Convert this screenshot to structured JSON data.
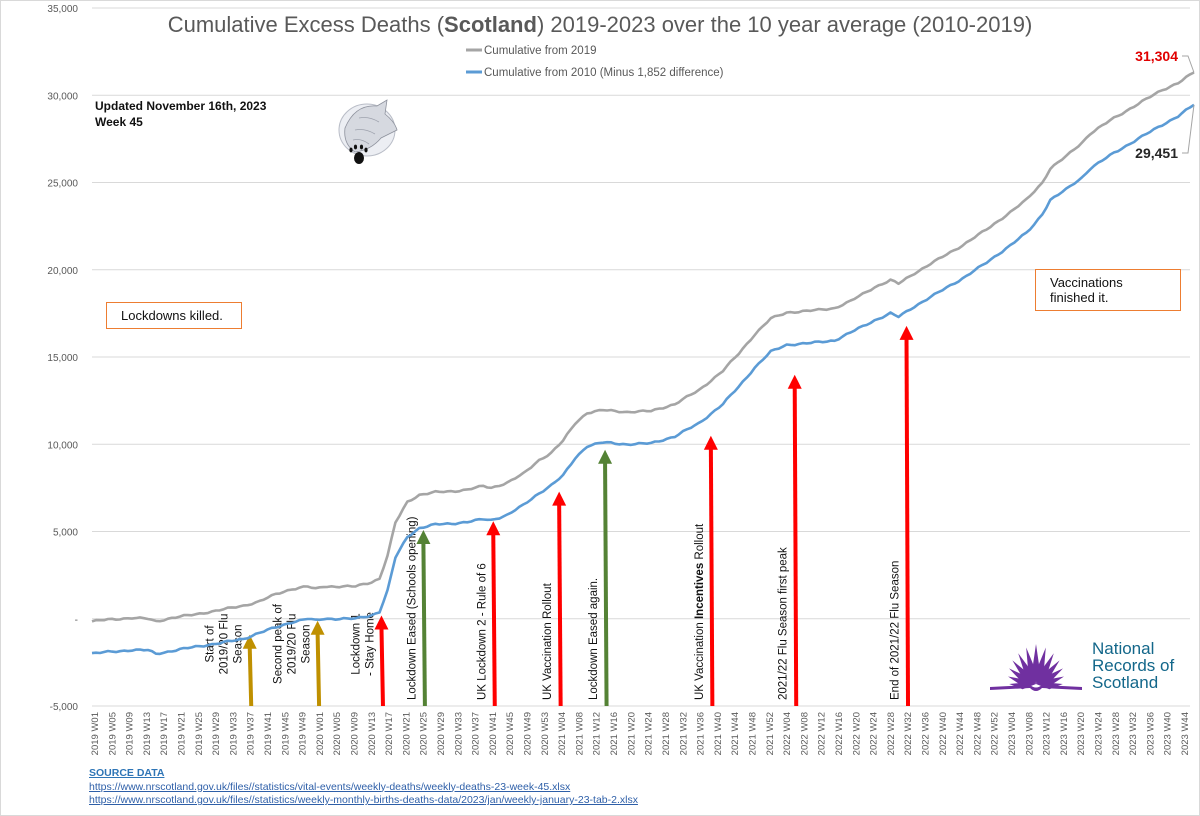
{
  "chart_data": {
    "type": "line",
    "title_parts": [
      "Cumulative Excess Deaths (",
      "Scotland",
      ") 2019-2023 over the 10 year average (2010-2019)"
    ],
    "xlabel": "",
    "ylabel": "",
    "ylim": [
      -5000,
      35000
    ],
    "yticks": [
      -5000,
      0,
      5000,
      10000,
      15000,
      20000,
      25000,
      30000,
      35000
    ],
    "ytick_labels": [
      "-5,000",
      "-",
      "5,000",
      "10,000",
      "15,000",
      "20,000",
      "25,000",
      "30,000",
      "35,000"
    ],
    "grid": true,
    "legend_position": "top-center",
    "x_start": "2019 W01",
    "x_end": "2023 W45",
    "x_count": 254,
    "x_tick_labels": [
      "2019 W01",
      "2019 W05",
      "2019 W09",
      "2019 W13",
      "2019 W17",
      "2019 W21",
      "2019 W25",
      "2019 W29",
      "2019 W33",
      "2019 W37",
      "2019 W41",
      "2019 W45",
      "2019 W49",
      "2020 W01",
      "2020 W05",
      "2020 W09",
      "2020 W13",
      "2020 W17",
      "2020 W21",
      "2020 W25",
      "2020 W29",
      "2020 W33",
      "2020 W37",
      "2020 W41",
      "2020 W45",
      "2020 W49",
      "2020 W53",
      "2021 W04",
      "2021 W08",
      "2021 W12",
      "2021 W16",
      "2021 W20",
      "2021 W24",
      "2021 W28",
      "2021 W32",
      "2021 W36",
      "2021 W40",
      "2021 W44",
      "2021 W48",
      "2021 W52",
      "2022 W04",
      "2022 W08",
      "2022 W12",
      "2022 W16",
      "2022 W20",
      "2022 W24",
      "2022 W28",
      "2022 W32",
      "2022 W36",
      "2022 W40",
      "2022 W44",
      "2022 W48",
      "2022 W52",
      "2023 W04",
      "2023 W08",
      "2023 W12",
      "2023 W16",
      "2023 W20",
      "2023 W24",
      "2023 W28",
      "2023 W32",
      "2023 W36",
      "2023 W40",
      "2023 W44"
    ],
    "series": [
      {
        "name": "Cumulative from 2019",
        "color": "#a5a5a5",
        "end_label": "31,304",
        "end_label_color": "#e00000",
        "keypoints": [
          [
            0,
            -150
          ],
          [
            4,
            -50
          ],
          [
            10,
            50
          ],
          [
            14,
            0
          ],
          [
            16,
            -150
          ],
          [
            20,
            50
          ],
          [
            26,
            250
          ],
          [
            32,
            500
          ],
          [
            38,
            750
          ],
          [
            42,
            1000
          ],
          [
            46,
            1400
          ],
          [
            50,
            1700
          ],
          [
            54,
            1850
          ],
          [
            56,
            1700
          ],
          [
            58,
            1850
          ],
          [
            66,
            1850
          ],
          [
            70,
            2100
          ],
          [
            72,
            2300
          ],
          [
            74,
            3600
          ],
          [
            76,
            5500
          ],
          [
            79,
            6700
          ],
          [
            82,
            7100
          ],
          [
            86,
            7250
          ],
          [
            90,
            7300
          ],
          [
            94,
            7400
          ],
          [
            98,
            7600
          ],
          [
            100,
            7500
          ],
          [
            104,
            7800
          ],
          [
            108,
            8300
          ],
          [
            112,
            9100
          ],
          [
            115,
            9500
          ],
          [
            118,
            10200
          ],
          [
            121,
            11200
          ],
          [
            124,
            11800
          ],
          [
            128,
            11950
          ],
          [
            134,
            11850
          ],
          [
            140,
            11900
          ],
          [
            146,
            12300
          ],
          [
            152,
            13100
          ],
          [
            158,
            14200
          ],
          [
            162,
            15200
          ],
          [
            166,
            16300
          ],
          [
            170,
            17200
          ],
          [
            174,
            17550
          ],
          [
            180,
            17650
          ],
          [
            186,
            17800
          ],
          [
            190,
            18200
          ],
          [
            196,
            19000
          ],
          [
            200,
            19400
          ],
          [
            202,
            19200
          ],
          [
            206,
            19800
          ],
          [
            212,
            20600
          ],
          [
            218,
            21400
          ],
          [
            224,
            22300
          ],
          [
            230,
            23300
          ],
          [
            234,
            24000
          ],
          [
            236,
            24500
          ],
          [
            238,
            25000
          ],
          [
            240,
            25800
          ],
          [
            244,
            26500
          ],
          [
            248,
            27300
          ],
          [
            250,
            27800
          ],
          [
            256,
            28700
          ],
          [
            262,
            29500
          ],
          [
            268,
            30300
          ],
          [
            272,
            30700
          ],
          [
            276,
            31304
          ]
        ]
      },
      {
        "name": "Cumulative from 2010 (Minus 1,852 difference)",
        "color": "#5b9bd5",
        "end_label": "29,451",
        "end_label_color": "#262626",
        "keypoints": [
          [
            0,
            -2000
          ],
          [
            4,
            -1900
          ],
          [
            10,
            -1800
          ],
          [
            14,
            -1800
          ],
          [
            16,
            -2000
          ],
          [
            20,
            -1850
          ],
          [
            26,
            -1600
          ],
          [
            32,
            -1400
          ],
          [
            38,
            -1150
          ],
          [
            42,
            -800
          ],
          [
            46,
            -500
          ],
          [
            50,
            -200
          ],
          [
            54,
            0
          ],
          [
            56,
            -100
          ],
          [
            58,
            0
          ],
          [
            66,
            0
          ],
          [
            70,
            200
          ],
          [
            72,
            400
          ],
          [
            74,
            1600
          ],
          [
            76,
            3500
          ],
          [
            79,
            4700
          ],
          [
            82,
            5200
          ],
          [
            86,
            5400
          ],
          [
            90,
            5450
          ],
          [
            94,
            5550
          ],
          [
            98,
            5700
          ],
          [
            100,
            5650
          ],
          [
            104,
            5950
          ],
          [
            108,
            6500
          ],
          [
            112,
            7200
          ],
          [
            115,
            7650
          ],
          [
            118,
            8200
          ],
          [
            121,
            9200
          ],
          [
            124,
            9900
          ],
          [
            128,
            10100
          ],
          [
            134,
            10000
          ],
          [
            140,
            10050
          ],
          [
            146,
            10450
          ],
          [
            152,
            11200
          ],
          [
            158,
            12300
          ],
          [
            162,
            13300
          ],
          [
            166,
            14400
          ],
          [
            170,
            15300
          ],
          [
            174,
            15700
          ],
          [
            180,
            15800
          ],
          [
            186,
            15950
          ],
          [
            190,
            16400
          ],
          [
            196,
            17100
          ],
          [
            200,
            17500
          ],
          [
            202,
            17300
          ],
          [
            206,
            17900
          ],
          [
            212,
            18700
          ],
          [
            218,
            19500
          ],
          [
            224,
            20400
          ],
          [
            230,
            21400
          ],
          [
            234,
            22100
          ],
          [
            236,
            22600
          ],
          [
            238,
            23200
          ],
          [
            240,
            24000
          ],
          [
            244,
            24600
          ],
          [
            248,
            25300
          ],
          [
            250,
            25800
          ],
          [
            256,
            26700
          ],
          [
            262,
            27500
          ],
          [
            268,
            28300
          ],
          [
            272,
            28800
          ],
          [
            276,
            29451
          ]
        ]
      }
    ],
    "annotations": [
      {
        "x_index": 39.5,
        "top_value": -800,
        "color": "#bf9000",
        "lines": [
          "Start of",
          "2019/20 Flu",
          "Season"
        ]
      },
      {
        "x_index": 56.5,
        "top_value": 0,
        "color": "#bf9000",
        "lines": [
          "Second peak of",
          "2019/20 Flu",
          "Season"
        ]
      },
      {
        "x_index": 72.5,
        "top_value": 300,
        "color": "#ff0000",
        "lines": [
          "Lockdown 1",
          "- Stay Home"
        ]
      },
      {
        "x_index": 83,
        "top_value": 5200,
        "color": "#548235",
        "lines": [
          "Lockdown Eased (Schools opening)"
        ]
      },
      {
        "x_index": 100.5,
        "top_value": 5700,
        "color": "#ff0000",
        "lines": [
          "UK Lockdown 2 - Rule of 6"
        ]
      },
      {
        "x_index": 117,
        "top_value": 7400,
        "color": "#ff0000",
        "lines": [
          "UK Vaccination Rollout"
        ]
      },
      {
        "x_index": 128.5,
        "top_value": 9800,
        "color": "#548235",
        "lines": [
          "Lockdown Eased again."
        ]
      },
      {
        "x_index": 155,
        "top_value": 10600,
        "color": "#ff0000",
        "lines_rich": [
          [
            "UK Vaccination ",
            false
          ],
          [
            "Incentives",
            true
          ],
          [
            " Rollout",
            false
          ]
        ]
      },
      {
        "x_index": 176,
        "top_value": 14100,
        "color": "#ff0000",
        "lines": [
          "2021/22 Flu Season first peak"
        ]
      },
      {
        "x_index": 204,
        "top_value": 16900,
        "color": "#ff0000",
        "lines": [
          "End of 2021/22 Flu Season"
        ]
      }
    ]
  },
  "updated_line1": "Updated November 16th, 2023",
  "updated_line2": "Week 45",
  "callouts": {
    "left": "Lockdowns killed.",
    "right": "Vaccinations finished it."
  },
  "source": {
    "header": "SOURCE DATA",
    "links": [
      "https://www.nrscotland.gov.uk/files//statistics/vital-events/weekly-deaths/weekly-deaths-23-week-45.xlsx",
      "https://www.nrscotland.gov.uk/files//statistics/weekly-monthly-births-deaths-data/2023/jan/weekly-january-23-tab-2.xlsx"
    ]
  },
  "logo": {
    "nrs_line1": "National",
    "nrs_line2": "Records of",
    "nrs_line3": "Scotland",
    "nrs_text_color": "#13678a",
    "nrs_purple": "#7030a0"
  },
  "images": {
    "wolf": "wolf-head-with-paw-print-drawing"
  }
}
